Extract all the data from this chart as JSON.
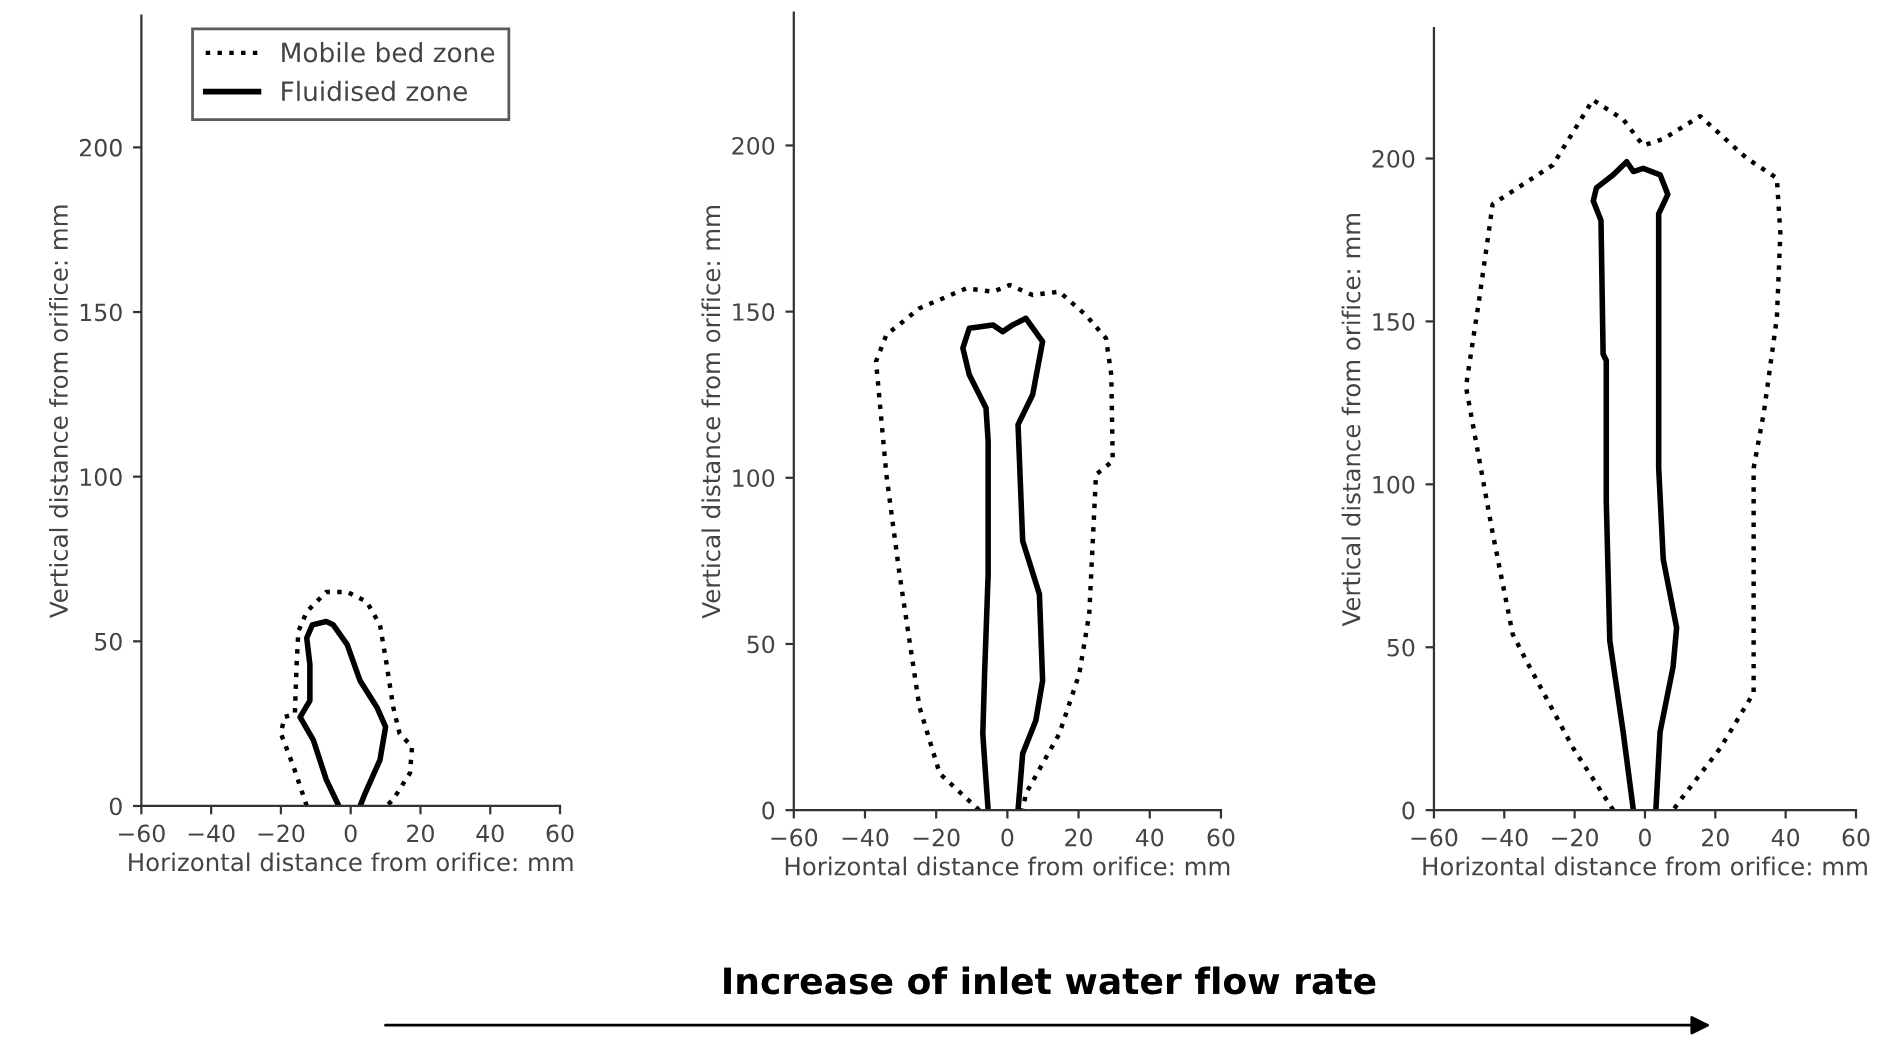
{
  "chart_data": [
    {
      "type": "line",
      "xlabel": "Horizontal distance from orifice: mm",
      "ylabel": "Vertical distance from orifice: mm",
      "xlim": [
        -60,
        60
      ],
      "ylim": [
        0,
        240
      ],
      "xticks": [
        {
          "value": -60,
          "label": "−60"
        },
        {
          "value": -40,
          "label": "−40"
        },
        {
          "value": -20,
          "label": "−20"
        },
        0,
        20,
        40,
        60
      ],
      "yticks": [
        0,
        50,
        100,
        150,
        200
      ],
      "grid": false,
      "legend": "top",
      "marker": "none",
      "series": [
        {
          "name": "Mobile bed zone",
          "color": "#000000",
          "line_style": "dotted",
          "x": [
            -12.6,
            -16.4,
            -20,
            -19,
            -16,
            -15.5,
            -15,
            -12.6,
            -7,
            -1,
            4.6,
            8.4,
            10.3,
            12.2,
            14,
            17.6,
            17,
            12.2,
            10.3
          ],
          "values": [
            0,
            12,
            22,
            27,
            28,
            43,
            53,
            59,
            65,
            65,
            62,
            55,
            43,
            30,
            22,
            18,
            10,
            2,
            0
          ]
        },
        {
          "name": "Fluidised zone",
          "color": "#000000",
          "line_style": "solid",
          "x": [
            -3.4,
            -7,
            -10.7,
            -14.5,
            -11.7,
            -11.7,
            -12.6,
            -11,
            -7,
            -5,
            -1,
            2.7,
            7.5,
            10,
            8.4,
            4.2,
            2.7
          ],
          "values": [
            0,
            8,
            20,
            27,
            32,
            43,
            51,
            55,
            56,
            55,
            49,
            38,
            30,
            24,
            14,
            4,
            0
          ]
        }
      ]
    },
    {
      "type": "line",
      "xlabel": "Horizontal distance from orifice: mm",
      "ylabel": "Vertical distance from orifice: mm",
      "xlim": [
        -60,
        60
      ],
      "ylim": [
        0,
        240
      ],
      "xticks": [
        {
          "value": -60,
          "label": "−60"
        },
        {
          "value": -40,
          "label": "−40"
        },
        {
          "value": -20,
          "label": "−20"
        },
        0,
        20,
        40,
        60
      ],
      "yticks": [
        0,
        50,
        100,
        150,
        200
      ],
      "grid": false,
      "marker": "none",
      "series": [
        {
          "color": "#000000",
          "line_style": "dotted",
          "x": [
            -7.9,
            -19,
            -24.7,
            -30.3,
            -34,
            -36.9,
            -34,
            -24.7,
            -11.6,
            -4,
            0.6,
            7.1,
            14.6,
            22,
            27.7,
            29.2,
            29.6,
            24.9,
            24,
            23,
            20.2,
            14.6,
            5.2,
            4.3
          ],
          "values": [
            0,
            11,
            31,
            71,
            101,
            135,
            143,
            151,
            157,
            156,
            158,
            155,
            156,
            149,
            142,
            131,
            105,
            101,
            81,
            59,
            41,
            23,
            5,
            0
          ]
        },
        {
          "color": "#000000",
          "line_style": "solid",
          "x": [
            -5.4,
            -6.4,
            -6.9,
            -6.4,
            -5.4,
            -5.4,
            -6,
            -10.7,
            -12.5,
            -10.7,
            -4.1,
            -1.3,
            1.5,
            5.2,
            9.9,
            7.1,
            3,
            4.3,
            9,
            9.9,
            8,
            4.3,
            3
          ],
          "values": [
            0,
            15,
            23,
            41,
            71,
            111,
            121,
            131,
            139,
            145,
            146,
            144,
            146,
            148,
            141,
            125,
            116,
            81,
            65,
            39,
            27,
            17,
            0
          ]
        }
      ]
    },
    {
      "type": "line",
      "xlabel": "Horizontal distance from orifice: mm",
      "ylabel": "Vertical distance from orifice: mm",
      "xlim": [
        -60,
        60
      ],
      "ylim": [
        0,
        240
      ],
      "xticks": [
        {
          "value": -60,
          "label": "−60"
        },
        {
          "value": -40,
          "label": "−40"
        },
        {
          "value": -20,
          "label": "−20"
        },
        0,
        20,
        40,
        60
      ],
      "yticks": [
        0,
        50,
        100,
        150,
        200
      ],
      "grid": false,
      "marker": "none",
      "annotations": [
        "Increase of inlet water flow rate"
      ],
      "series": [
        {
          "color": "#000000",
          "line_style": "dotted",
          "x": [
            -9,
            -20.4,
            -33.8,
            -37.6,
            -43.3,
            -50.9,
            -47.1,
            -43.3,
            -37.6,
            -26.2,
            -14.8,
            -6.2,
            -0.5,
            5.2,
            15.7,
            29,
            37.5,
            38.5,
            37.5,
            33.8,
            30.9,
            30.9,
            21.4,
            10,
            8
          ],
          "values": [
            0,
            19,
            46,
            54,
            85,
            130,
            157,
            186,
            190,
            198,
            218,
            212,
            204,
            206,
            213,
            200,
            194,
            177,
            151,
            122,
            105,
            36,
            19,
            3,
            0
          ]
        },
        {
          "color": "#000000",
          "line_style": "solid",
          "x": [
            -3.3,
            -6.2,
            -10,
            -11,
            -11,
            -11.9,
            -12.5,
            -14.7,
            -13.8,
            -9,
            -5.2,
            -3.3,
            -0.5,
            4.3,
            6.5,
            3.9,
            3.9,
            5.2,
            9,
            8,
            4.3,
            3.1
          ],
          "values": [
            0,
            24,
            52,
            95,
            138,
            140,
            181,
            187,
            191,
            195,
            199,
            196,
            197,
            195,
            189,
            183,
            105,
            77,
            56,
            44,
            24,
            0
          ]
        }
      ]
    }
  ]
}
